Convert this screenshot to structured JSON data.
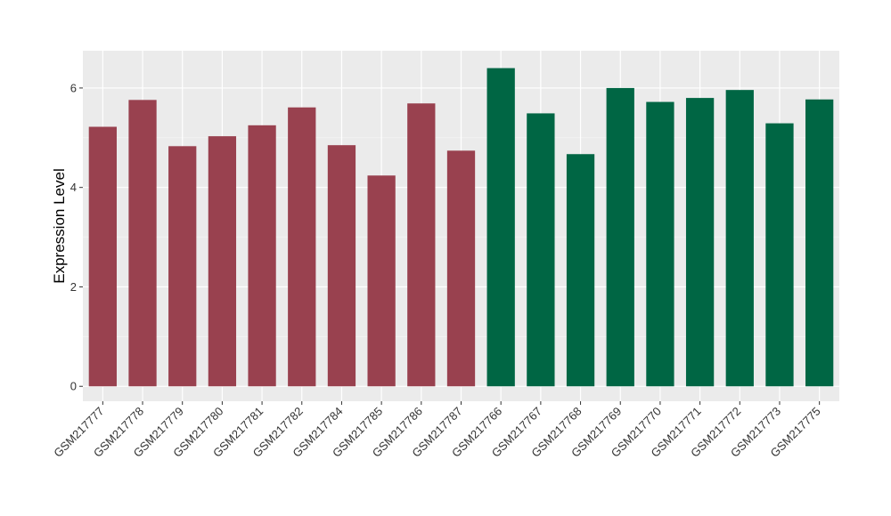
{
  "chart_data": {
    "type": "bar",
    "title": "",
    "xlabel": "",
    "ylabel": "Expression Level",
    "ylim": [
      -0.3,
      6.75
    ],
    "yticks": [
      0,
      2,
      4,
      6
    ],
    "grid": true,
    "legend": "none",
    "panel_background": "#ebebeb",
    "categories": [
      "GSM217777",
      "GSM217778",
      "GSM217779",
      "GSM217780",
      "GSM217781",
      "GSM217782",
      "GSM217784",
      "GSM217785",
      "GSM217786",
      "GSM217787",
      "GSM217766",
      "GSM217767",
      "GSM217768",
      "GSM217769",
      "GSM217770",
      "GSM217771",
      "GSM217772",
      "GSM217773",
      "GSM217775"
    ],
    "values": [
      5.22,
      5.76,
      4.83,
      5.03,
      5.25,
      5.61,
      4.85,
      4.24,
      5.69,
      4.74,
      6.4,
      5.49,
      4.67,
      6.0,
      5.72,
      5.8,
      5.96,
      5.29,
      5.77
    ],
    "groups": [
      0,
      0,
      0,
      0,
      0,
      0,
      0,
      0,
      0,
      0,
      1,
      1,
      1,
      1,
      1,
      1,
      1,
      1,
      1
    ],
    "group_colors": [
      "#99414f",
      "#006644"
    ]
  }
}
